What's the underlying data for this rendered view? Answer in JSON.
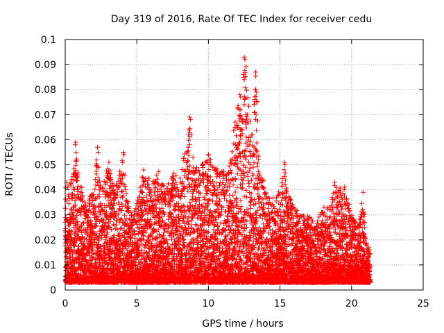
{
  "chart_data": {
    "type": "scatter",
    "title": "Day 319 of 2016, Rate Of TEC Index for receiver cedu",
    "xlabel": "GPS time / hours",
    "ylabel": "ROTI / TECUs",
    "xlim": [
      0,
      25
    ],
    "ylim": [
      0,
      0.1
    ],
    "xticks": [
      0,
      5,
      10,
      15,
      20,
      25
    ],
    "yticks": [
      0,
      0.01,
      0.02,
      0.03,
      0.04,
      0.05,
      0.06,
      0.07,
      0.08,
      0.09,
      0.1
    ],
    "xtick_labels": [
      "0",
      "5",
      "10",
      "15",
      "20",
      "25"
    ],
    "ytick_labels": [
      "0",
      "0.01",
      "0.02",
      "0.03",
      "0.04",
      "0.05",
      "0.06",
      "0.07",
      "0.08",
      "0.09",
      "0.1"
    ],
    "grid": true,
    "marker": "+",
    "marker_color": "#ff0000",
    "series": [
      {
        "x_range": [
          0,
          21.3
        ],
        "envelope": [
          [
            0.0,
            0.043
          ],
          [
            0.5,
            0.045
          ],
          [
            0.7,
            0.059
          ],
          [
            1.0,
            0.044
          ],
          [
            1.5,
            0.035
          ],
          [
            2.0,
            0.04
          ],
          [
            2.2,
            0.057
          ],
          [
            2.5,
            0.04
          ],
          [
            3.0,
            0.051
          ],
          [
            3.5,
            0.04
          ],
          [
            4.0,
            0.055
          ],
          [
            4.5,
            0.03
          ],
          [
            5.0,
            0.035
          ],
          [
            5.5,
            0.049
          ],
          [
            6.0,
            0.043
          ],
          [
            6.5,
            0.049
          ],
          [
            7.0,
            0.04
          ],
          [
            7.5,
            0.048
          ],
          [
            8.0,
            0.045
          ],
          [
            8.3,
            0.055
          ],
          [
            8.7,
            0.069
          ],
          [
            9.0,
            0.05
          ],
          [
            9.5,
            0.05
          ],
          [
            10.0,
            0.054
          ],
          [
            10.5,
            0.049
          ],
          [
            11.0,
            0.048
          ],
          [
            11.5,
            0.05
          ],
          [
            12.0,
            0.078
          ],
          [
            12.3,
            0.071
          ],
          [
            12.6,
            0.093
          ],
          [
            13.0,
            0.063
          ],
          [
            13.3,
            0.087
          ],
          [
            13.6,
            0.05
          ],
          [
            14.0,
            0.04
          ],
          [
            14.5,
            0.037
          ],
          [
            15.0,
            0.04
          ],
          [
            15.3,
            0.051
          ],
          [
            15.5,
            0.04
          ],
          [
            16.0,
            0.033
          ],
          [
            16.5,
            0.03
          ],
          [
            17.0,
            0.03
          ],
          [
            17.5,
            0.026
          ],
          [
            18.0,
            0.033
          ],
          [
            18.5,
            0.034
          ],
          [
            18.8,
            0.043
          ],
          [
            19.0,
            0.04
          ],
          [
            19.5,
            0.042
          ],
          [
            20.0,
            0.03
          ],
          [
            20.5,
            0.025
          ],
          [
            20.8,
            0.039
          ],
          [
            21.0,
            0.02
          ],
          [
            21.3,
            0.016
          ]
        ],
        "highlights": [
          [
            12.5,
            0.093
          ],
          [
            12.55,
            0.092
          ],
          [
            12.45,
            0.086
          ],
          [
            12.5,
            0.084
          ],
          [
            13.3,
            0.087
          ],
          [
            13.3,
            0.08
          ],
          [
            12.2,
            0.078
          ],
          [
            12.25,
            0.077
          ],
          [
            12.5,
            0.074
          ],
          [
            12.6,
            0.07
          ],
          [
            12.4,
            0.068
          ],
          [
            12.6,
            0.067
          ],
          [
            13.3,
            0.068
          ],
          [
            8.7,
            0.069
          ],
          [
            8.75,
            0.068
          ],
          [
            8.65,
            0.064
          ],
          [
            8.7,
            0.063
          ],
          [
            8.6,
            0.062
          ],
          [
            0.72,
            0.059
          ],
          [
            0.7,
            0.058
          ],
          [
            2.25,
            0.057
          ],
          [
            2.3,
            0.055
          ],
          [
            4.05,
            0.055
          ],
          [
            4.1,
            0.054
          ],
          [
            10.0,
            0.054
          ],
          [
            15.3,
            0.051
          ],
          [
            15.35,
            0.05
          ],
          [
            3.05,
            0.051
          ],
          [
            18.8,
            0.043
          ],
          [
            20.8,
            0.039
          ]
        ]
      }
    ]
  }
}
